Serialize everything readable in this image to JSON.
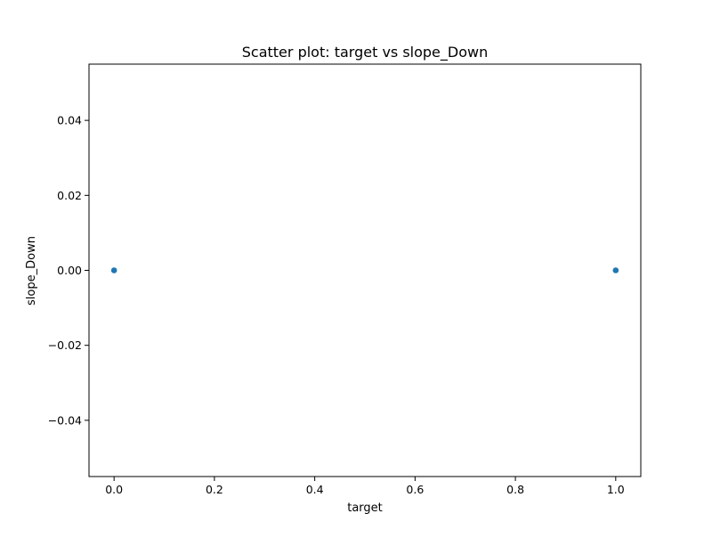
{
  "chart_data": {
    "type": "scatter",
    "title": "Scatter plot: target vs slope_Down",
    "xlabel": "target",
    "ylabel": "slope_Down",
    "xlim": [
      -0.05,
      1.05
    ],
    "ylim": [
      -0.055,
      0.055
    ],
    "xticks": [
      0.0,
      0.2,
      0.4,
      0.6,
      0.8,
      1.0
    ],
    "xtick_labels": [
      "0.0",
      "0.2",
      "0.4",
      "0.6",
      "0.8",
      "1.0"
    ],
    "yticks": [
      -0.04,
      -0.02,
      0.0,
      0.02,
      0.04
    ],
    "ytick_labels": [
      "−0.04",
      "−0.02",
      "0.00",
      "0.02",
      "0.04"
    ],
    "grid": false,
    "legend": "none",
    "series": [
      {
        "color": "#1f77b4",
        "points": [
          {
            "x": 0,
            "y": 0
          },
          {
            "x": 1,
            "y": 0
          }
        ]
      }
    ]
  }
}
